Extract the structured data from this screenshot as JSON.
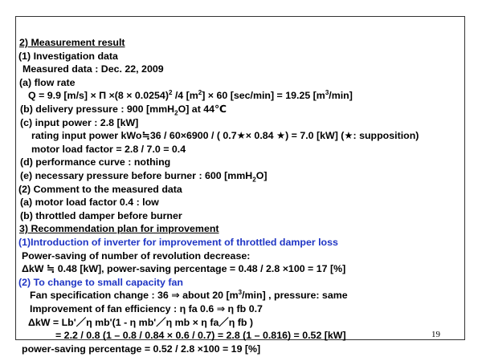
{
  "lines": [
    {
      "parts": [
        "2) Measurement result"
      ],
      "underline": true
    },
    {
      "parts": [
        "(1)  Investigation data"
      ]
    },
    {
      "parts": [
        "Measured data : Dec. 22, 2009"
      ]
    },
    {
      "parts": [
        "(a) flow rate"
      ]
    },
    {
      "parts": [
        "Q = 9.9 [m/s] × Π ×(8 × 0.0254)",
        {
          "sup": "2"
        },
        " /4 [m",
        {
          "sup": "2"
        },
        "] × 60 [sec/min] = 19.25 [m",
        {
          "sup": "3"
        },
        "/min]"
      ]
    },
    {
      "parts": [
        "(b) delivery pressure : 900 [mmH",
        {
          "sub": "2"
        },
        "O] at 44℃"
      ]
    },
    {
      "parts": [
        "(c) input power : 2.8 [kW]"
      ]
    },
    {
      "parts": [
        "rating input power  kWo≒36 / 60×6900 / ( 0.7★× 0.84 ★) = 7.0 [kW] (★: supposition)"
      ]
    },
    {
      "parts": [
        "motor load factor = 2.8 / 7.0 = 0.4"
      ]
    },
    {
      "parts": [
        "(d) performance curve : nothing"
      ]
    },
    {
      "parts": [
        "(e) necessary pressure before burner : 600 [mmH",
        {
          "sub": "2"
        },
        "O]"
      ]
    },
    {
      "parts": [
        "(2) Comment  to the measured data"
      ]
    },
    {
      "parts": [
        "(a) motor load factor 0.4 : low"
      ]
    },
    {
      "parts": [
        "(b) throttled damper before burner"
      ]
    },
    {
      "parts": [
        "3) Recommendation plan for improvement"
      ],
      "underline": true
    },
    {
      "parts": [
        "(1)Introduction of inverter  for  improvement  of  throttled damper loss"
      ],
      "color": "#1f35c4"
    },
    {
      "parts": [
        "Power-saving of number of revolution decrease:"
      ]
    },
    {
      "parts": [
        "ΔkW ≒ 0.48 [kW],  power-saving percentage = 0.48 / 2.8 ×100 = 17 [%]"
      ]
    },
    {
      "parts": [
        "(2) To change to small capacity fan"
      ],
      "color": "#1f35c4"
    },
    {
      "parts": [
        "Fan specification change : 36 ⇒ about  20 [m",
        {
          "sup": "3"
        },
        "/min] , pressure: same"
      ]
    },
    {
      "parts": [
        "Improvement of fan efficiency : η fa 0.6 ⇒ η fb 0.7"
      ]
    },
    {
      "parts": [
        "ΔkW = Lb'／η mb'(1 - η mb'／η mb × η fa／η fb )"
      ]
    },
    {
      "parts": [
        "= 2.2 / 0.8 (1 – 0.8 / 0.84 × 0.6 / 0.7) = 2.8 (1 – 0.816) = 0.52 [kW]"
      ]
    },
    {
      "parts": [
        "power-saving percentage = 0.52 / 2.8 ×100 = 19 [%]"
      ]
    }
  ],
  "page_number": "19"
}
